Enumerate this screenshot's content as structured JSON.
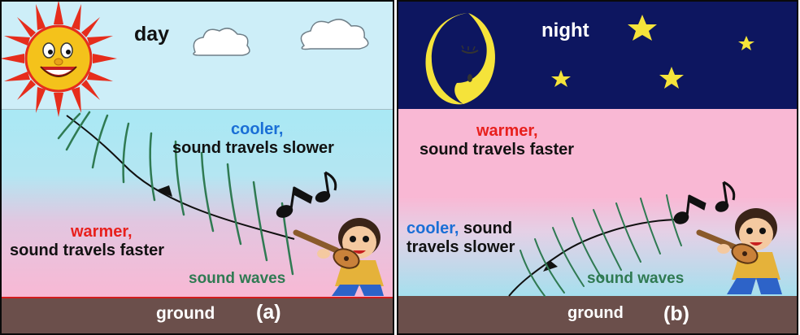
{
  "panel_a": {
    "title": "day",
    "upper_air": {
      "label_colored": "cooler,",
      "label_rest": "sound travels slower"
    },
    "lower_air": {
      "label_colored": "warmer,",
      "label_rest": "sound travels faster"
    },
    "waves_label": "sound waves",
    "ground_label": "ground",
    "panel_label": "(a)"
  },
  "panel_b": {
    "title": "night",
    "upper_air": {
      "label_colored": "warmer,",
      "label_rest": "sound travels faster"
    },
    "lower_air": {
      "label_colored": "cooler,",
      "label_rest_line1": " sound",
      "label_rest_line2": "travels slower"
    },
    "waves_label": "sound waves",
    "ground_label": "ground",
    "panel_label": "(b)"
  },
  "colors": {
    "day_sky": "#cdeef8",
    "night_sky": "#0d1660",
    "cool_air": "#9fe4f0",
    "warm_air": "#f9b8d4",
    "ground": "#6b4f4b",
    "warm_text": "#e8201d",
    "cool_text": "#1a6fd6",
    "wave_text": "#2f7a52",
    "sun": "#f4c21b",
    "sun_rays": "#e62d1c",
    "moon_star": "#f5e33a"
  },
  "icons": [
    "sun-icon",
    "cloud-icon",
    "moon-icon",
    "star-icon",
    "music-note-icon",
    "guitar-player-icon"
  ]
}
